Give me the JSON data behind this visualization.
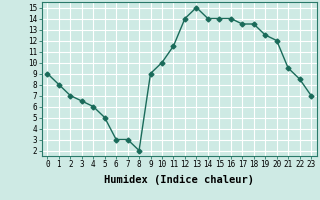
{
  "x": [
    0,
    1,
    2,
    3,
    4,
    5,
    6,
    7,
    8,
    9,
    10,
    11,
    12,
    13,
    14,
    15,
    16,
    17,
    18,
    19,
    20,
    21,
    22,
    23
  ],
  "y": [
    9.0,
    8.0,
    7.0,
    6.5,
    6.0,
    5.0,
    3.0,
    3.0,
    2.0,
    9.0,
    10.0,
    11.5,
    14.0,
    15.0,
    14.0,
    14.0,
    14.0,
    13.5,
    13.5,
    12.5,
    12.0,
    9.5,
    8.5,
    7.0
  ],
  "xlim": [
    -0.5,
    23.5
  ],
  "ylim": [
    1.5,
    15.5
  ],
  "yticks": [
    2,
    3,
    4,
    5,
    6,
    7,
    8,
    9,
    10,
    11,
    12,
    13,
    14,
    15
  ],
  "xticks": [
    0,
    1,
    2,
    3,
    4,
    5,
    6,
    7,
    8,
    9,
    10,
    11,
    12,
    13,
    14,
    15,
    16,
    17,
    18,
    19,
    20,
    21,
    22,
    23
  ],
  "xlabel": "Humidex (Indice chaleur)",
  "line_color": "#1a6b5a",
  "marker": "D",
  "marker_size": 2.5,
  "bg_color": "#ceeae4",
  "grid_color": "#ffffff",
  "axis_bg": "#ceeae4",
  "tick_label_fontsize": 5.5,
  "xlabel_fontsize": 7.5
}
